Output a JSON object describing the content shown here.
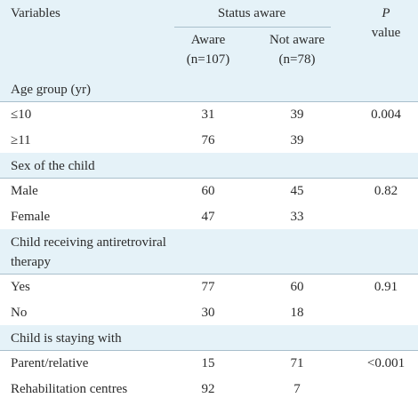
{
  "header": {
    "variables": "Variables",
    "status_aware": "Status aware",
    "aware": "Aware",
    "aware_n": "(n=107)",
    "not_aware": "Not aware",
    "not_aware_n": "(n=78)",
    "p": "P",
    "p_value": "value"
  },
  "sections": [
    {
      "title": "Age group (yr)",
      "rows": [
        {
          "label": "≤10",
          "aware": 31,
          "not_aware": 39,
          "p": "0.004"
        },
        {
          "label": "≥11",
          "aware": 76,
          "not_aware": 39
        }
      ]
    },
    {
      "title": "Sex of the child",
      "rows": [
        {
          "label": "Male",
          "aware": 60,
          "not_aware": 45,
          "p": "0.82"
        },
        {
          "label": "Female",
          "aware": 47,
          "not_aware": 33
        }
      ]
    },
    {
      "title": "Child receiving antiretroviral therapy",
      "rows": [
        {
          "label": "Yes",
          "aware": 77,
          "not_aware": 60,
          "p": "0.91"
        },
        {
          "label": "No",
          "aware": 30,
          "not_aware": 18
        }
      ]
    },
    {
      "title": "Child is staying with",
      "rows": [
        {
          "label": "Parent/relative",
          "aware": 15,
          "not_aware": 71,
          "p": "<0.001"
        },
        {
          "label": "Rehabilitation centres",
          "aware": 92,
          "not_aware": 7
        }
      ]
    }
  ]
}
